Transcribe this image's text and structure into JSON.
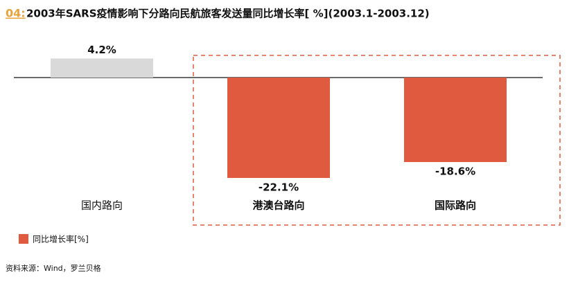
{
  "chart_data": {
    "type": "bar",
    "title_prefix": "04:",
    "title": "2003年SARS疫情影响下分路向民航旅客发送量同比增长率[ %](2003.1-2003.12)",
    "categories": [
      "国内路向",
      "港澳台路向",
      "国际路向"
    ],
    "series": [
      {
        "name": "同比增长率[%]",
        "color": "#e05a3f",
        "values": [
          4.2,
          -22.1,
          -18.6
        ],
        "value_labels": [
          "4.2%",
          "-22.1%",
          "-18.6%"
        ],
        "colors": [
          "#d9d9d9",
          "#e05a3f",
          "#e05a3f"
        ]
      }
    ],
    "source": "资料来源：Wind，罗兰贝格"
  }
}
